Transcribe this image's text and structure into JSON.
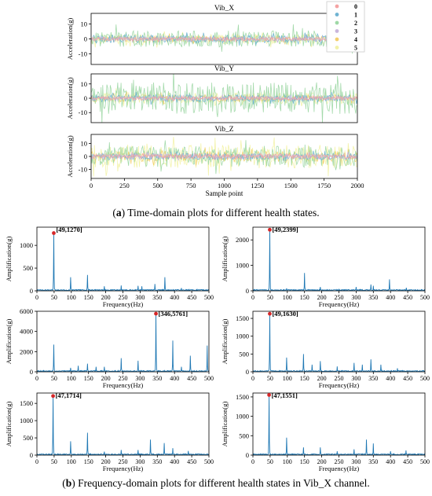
{
  "chart_data": [
    {
      "type": "line",
      "title": "Vib_X",
      "xlabel": "",
      "ylabel": "Acceleration(g)",
      "ylim": [
        -17,
        17
      ],
      "yticks": [
        -10,
        0,
        10
      ],
      "xlim": [
        0,
        2000
      ],
      "x_range": [
        0,
        2000
      ],
      "xticks": [],
      "legend": "top-right",
      "series": [
        {
          "name": "0",
          "color": "#f4a3a3",
          "amplitude": 1.2
        },
        {
          "name": "1",
          "color": "#6fb3d2",
          "amplitude": 2.5
        },
        {
          "name": "2",
          "color": "#9fd8a6",
          "amplitude": 5.5
        },
        {
          "name": "3",
          "color": "#c9b6dc",
          "amplitude": 1.5
        },
        {
          "name": "4",
          "color": "#f3cf6e",
          "amplitude": 2.0
        },
        {
          "name": "5",
          "color": "#f2f2a8",
          "amplitude": 3.2
        }
      ]
    },
    {
      "type": "line",
      "title": "Vib_Y",
      "xlabel": "",
      "ylabel": "Acceleration(g)",
      "ylim": [
        -17,
        17
      ],
      "yticks": [
        -10,
        0,
        10
      ],
      "xlim": [
        0,
        2000
      ],
      "x_range": [
        0,
        2000
      ],
      "xticks": [],
      "series": [
        {
          "name": "0",
          "color": "#f4a3a3",
          "amplitude": 1.2
        },
        {
          "name": "1",
          "color": "#6fb3d2",
          "amplitude": 2.5
        },
        {
          "name": "2",
          "color": "#9fd8a6",
          "amplitude": 11
        },
        {
          "name": "3",
          "color": "#c9b6dc",
          "amplitude": 1.5
        },
        {
          "name": "4",
          "color": "#f3cf6e",
          "amplitude": 2.5
        },
        {
          "name": "5",
          "color": "#f2f2a8",
          "amplitude": 4
        }
      ]
    },
    {
      "type": "line",
      "title": "Vib_Z",
      "xlabel": "Sample point",
      "ylabel": "Acceleration(g)",
      "ylim": [
        -17,
        17
      ],
      "yticks": [
        -10,
        0,
        10
      ],
      "xlim": [
        0,
        2000
      ],
      "x_range": [
        0,
        2000
      ],
      "xticks": [
        0,
        250,
        500,
        750,
        1000,
        1250,
        1500,
        1750,
        2000
      ],
      "series": [
        {
          "name": "0",
          "color": "#f4a3a3",
          "amplitude": 1.5
        },
        {
          "name": "1",
          "color": "#6fb3d2",
          "amplitude": 2.5
        },
        {
          "name": "2",
          "color": "#9fd8a6",
          "amplitude": 8
        },
        {
          "name": "3",
          "color": "#c9b6dc",
          "amplitude": 2
        },
        {
          "name": "4",
          "color": "#f3cf6e",
          "amplitude": 4
        },
        {
          "name": "5",
          "color": "#f2f2a8",
          "amplitude": 9
        }
      ]
    },
    {
      "type": "line",
      "xlabel": "Frequency(Hz)",
      "ylabel": "Amplification(g)",
      "xlim": [
        0,
        500
      ],
      "ylim": [
        0,
        1400
      ],
      "xticks": [
        0,
        50,
        100,
        150,
        200,
        250,
        300,
        350,
        400,
        450,
        500
      ],
      "yticks": [
        0,
        500,
        1000
      ],
      "annotation": {
        "label": "[49,1270]",
        "x": 49,
        "y": 1270
      },
      "peaks": [
        [
          49,
          1270
        ],
        [
          98,
          300
        ],
        [
          147,
          350
        ],
        [
          196,
          100
        ],
        [
          245,
          120
        ],
        [
          294,
          110
        ],
        [
          305,
          100
        ],
        [
          343,
          150
        ],
        [
          372,
          300
        ],
        [
          420,
          60
        ]
      ],
      "series": [
        {
          "color": "#1f78b4"
        }
      ]
    },
    {
      "type": "line",
      "xlabel": "Frequency(Hz)",
      "ylabel": "Amplification(g)",
      "xlim": [
        0,
        500
      ],
      "ylim": [
        0,
        2500
      ],
      "xticks": [
        0,
        50,
        100,
        150,
        200,
        250,
        300,
        350,
        400,
        450,
        500
      ],
      "yticks": [
        0,
        1000,
        2000
      ],
      "annotation": {
        "label": "[49,2399]",
        "x": 49,
        "y": 2399
      },
      "peaks": [
        [
          49,
          2399
        ],
        [
          98,
          100
        ],
        [
          150,
          700
        ],
        [
          196,
          150
        ],
        [
          250,
          60
        ],
        [
          300,
          150
        ],
        [
          343,
          250
        ],
        [
          350,
          200
        ],
        [
          397,
          450
        ],
        [
          446,
          120
        ]
      ],
      "series": [
        {
          "color": "#1f78b4"
        }
      ]
    },
    {
      "type": "line",
      "xlabel": "Frequency(Hz)",
      "ylabel": "Amplification(g)",
      "xlim": [
        0,
        500
      ],
      "ylim": [
        0,
        6000
      ],
      "xticks": [
        0,
        50,
        100,
        150,
        200,
        250,
        300,
        350,
        400,
        450,
        500
      ],
      "yticks": [
        0,
        2000,
        4000,
        6000
      ],
      "annotation": {
        "label": "[346,5761]",
        "x": 346,
        "y": 5761
      },
      "peaks": [
        [
          49,
          2700
        ],
        [
          98,
          400
        ],
        [
          120,
          600
        ],
        [
          147,
          800
        ],
        [
          172,
          500
        ],
        [
          196,
          500
        ],
        [
          245,
          1350
        ],
        [
          294,
          1100
        ],
        [
          346,
          5761
        ],
        [
          395,
          3100
        ],
        [
          420,
          500
        ],
        [
          446,
          1600
        ],
        [
          495,
          2600
        ]
      ],
      "series": [
        {
          "color": "#1f78b4"
        }
      ]
    },
    {
      "type": "line",
      "xlabel": "Frequency(Hz)",
      "ylabel": "Amplification(g)",
      "xlim": [
        0,
        500
      ],
      "ylim": [
        0,
        1700
      ],
      "xticks": [
        0,
        50,
        100,
        150,
        200,
        250,
        300,
        350,
        400,
        450,
        500
      ],
      "yticks": [
        0,
        500,
        1000,
        1500
      ],
      "annotation": {
        "label": "[49,1630]",
        "x": 49,
        "y": 1630
      },
      "peaks": [
        [
          49,
          1630
        ],
        [
          98,
          400
        ],
        [
          147,
          500
        ],
        [
          172,
          200
        ],
        [
          196,
          300
        ],
        [
          245,
          150
        ],
        [
          294,
          250
        ],
        [
          318,
          200
        ],
        [
          343,
          350
        ],
        [
          372,
          200
        ],
        [
          420,
          100
        ]
      ],
      "series": [
        {
          "color": "#1f78b4"
        }
      ]
    },
    {
      "type": "line",
      "xlabel": "Frequency(Hz)",
      "ylabel": "Amplification(g)",
      "xlim": [
        0,
        500
      ],
      "ylim": [
        0,
        1800
      ],
      "xticks": [
        0,
        50,
        100,
        150,
        200,
        250,
        300,
        350,
        400,
        450,
        500
      ],
      "yticks": [
        0,
        500,
        1000,
        1500
      ],
      "annotation": {
        "label": "[47,1714]",
        "x": 47,
        "y": 1714
      },
      "peaks": [
        [
          47,
          1714
        ],
        [
          98,
          400
        ],
        [
          147,
          650
        ],
        [
          196,
          100
        ],
        [
          245,
          150
        ],
        [
          294,
          150
        ],
        [
          330,
          450
        ],
        [
          370,
          350
        ],
        [
          395,
          200
        ],
        [
          440,
          120
        ]
      ],
      "series": [
        {
          "color": "#1f78b4"
        }
      ]
    },
    {
      "type": "line",
      "xlabel": "Frequency(Hz)",
      "ylabel": "Amplification(g)",
      "xlim": [
        0,
        500
      ],
      "ylim": [
        0,
        1600
      ],
      "xticks": [
        0,
        50,
        100,
        150,
        200,
        250,
        300,
        350,
        400,
        450,
        500
      ],
      "yticks": [
        0,
        500,
        1000,
        1500
      ],
      "annotation": {
        "label": "[47,1551]",
        "x": 47,
        "y": 1551
      },
      "peaks": [
        [
          47,
          1551
        ],
        [
          98,
          450
        ],
        [
          147,
          200
        ],
        [
          196,
          200
        ],
        [
          245,
          100
        ],
        [
          294,
          150
        ],
        [
          330,
          400
        ],
        [
          350,
          300
        ],
        [
          400,
          100
        ],
        [
          445,
          120
        ]
      ],
      "series": [
        {
          "color": "#1f78b4"
        }
      ]
    }
  ],
  "captions": {
    "a_label": "a",
    "a_text": " Time-domain plots for different health states.",
    "b_label": "b",
    "b_text": " Frequency-domain plots for different health states in Vib_X channel."
  }
}
